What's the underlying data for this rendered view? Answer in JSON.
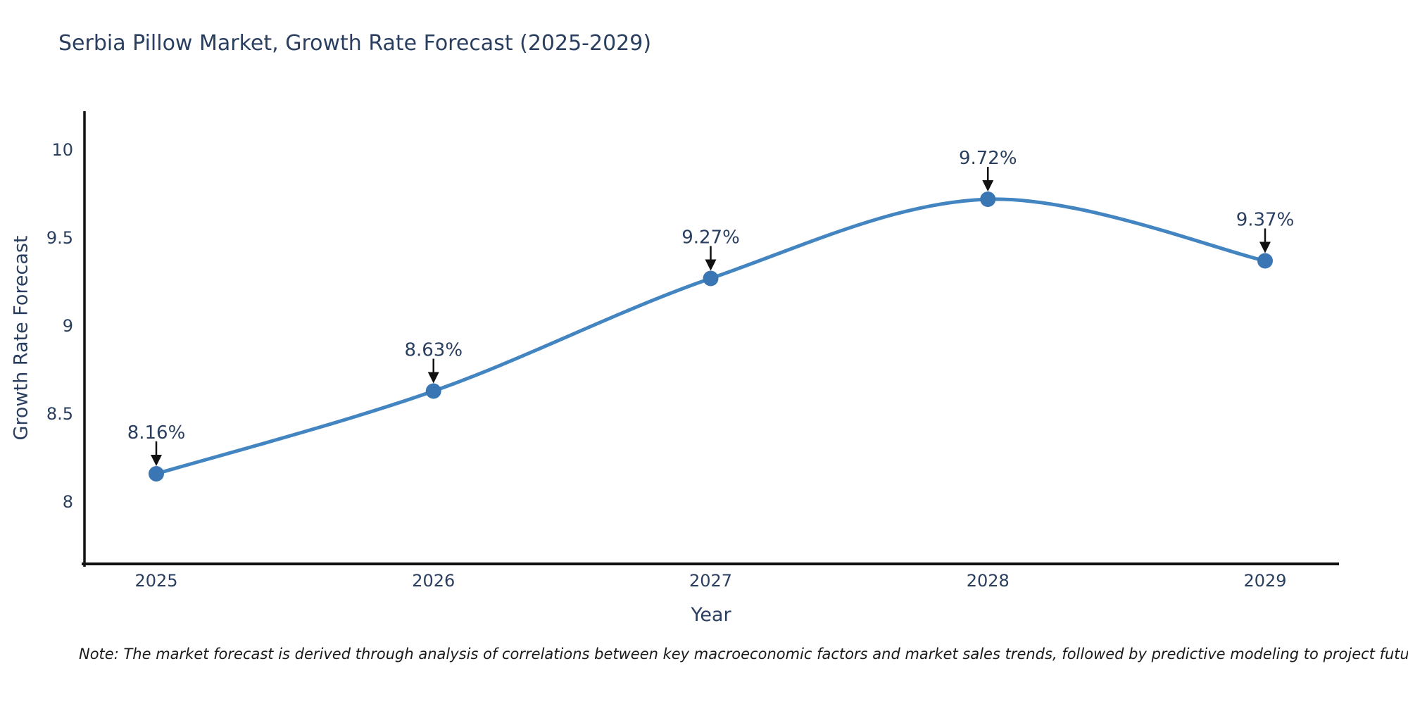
{
  "note": "Note: The market forecast is derived through analysis of correlations between key macroeconomic factors and market sales trends, followed by predictive modeling to project future sales",
  "chart_data": {
    "type": "line",
    "title": "Serbia Pillow Market, Growth Rate Forecast (2025-2029)",
    "xlabel": "Year",
    "ylabel": "Growth Rate Forecast",
    "categories": [
      "2025",
      "2026",
      "2027",
      "2028",
      "2029"
    ],
    "series": [
      {
        "name": "Growth Rate Forecast",
        "values": [
          8.16,
          8.63,
          9.27,
          9.72,
          9.37
        ]
      }
    ],
    "point_labels": [
      "8.16%",
      "8.63%",
      "9.27%",
      "9.72%",
      "9.37%"
    ],
    "yticks": [
      "8",
      "8.5",
      "9",
      "9.5",
      "10"
    ],
    "ytick_values": [
      8,
      8.5,
      9,
      9.5,
      10
    ],
    "ylim": [
      7.63,
      10.22
    ],
    "line_shape": "spline",
    "grid": false,
    "legend": "none",
    "markers": true,
    "annotations": "value labels with down arrows above each point",
    "colors": {
      "line": "#4385c1",
      "marker": "#3a76b3",
      "axis": "#111111",
      "tick_text": "#2a3f5f",
      "annotation_text": "#2a3f5f",
      "arrow": "#111111",
      "title_text": "#2a3f5f",
      "background": "#ffffff"
    }
  }
}
